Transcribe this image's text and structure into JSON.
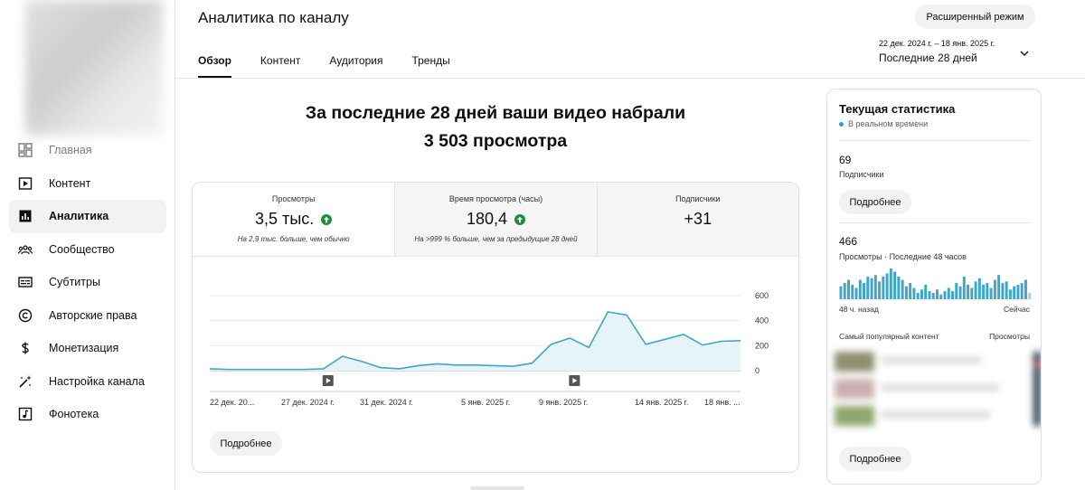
{
  "header": {
    "title": "Аналитика по каналу",
    "advanced_button": "Расширенный режим",
    "date_range": "22 дек. 2024 г. – 18 янв. 2025 г.",
    "date_label": "Последние 28 дней",
    "tabs": [
      {
        "label": "Обзор",
        "active": true
      },
      {
        "label": "Контент"
      },
      {
        "label": "Аудитория"
      },
      {
        "label": "Тренды"
      }
    ]
  },
  "sidebar": {
    "items": [
      {
        "label": "Главная",
        "icon": "dashboard-icon"
      },
      {
        "label": "Контент",
        "icon": "content-icon"
      },
      {
        "label": "Аналитика",
        "icon": "analytics-icon",
        "active": true
      },
      {
        "label": "Сообщество",
        "icon": "community-icon"
      },
      {
        "label": "Субтитры",
        "icon": "subtitles-icon"
      },
      {
        "label": "Авторские права",
        "icon": "copyright-icon"
      },
      {
        "label": "Монетизация",
        "icon": "monetization-icon"
      },
      {
        "label": "Настройка канала",
        "icon": "customization-icon"
      },
      {
        "label": "Фонотека",
        "icon": "audio-library-icon"
      }
    ]
  },
  "headline": {
    "line1": "За последние 28 дней ваши видео набрали",
    "line2": "3 503 просмотра"
  },
  "metrics": [
    {
      "title": "Просмотры",
      "value": "3,5 тыс.",
      "note": "На 2,9 тыс. больше, чем обычно",
      "trend": "up"
    },
    {
      "title": "Время просмотра (часы)",
      "value": "180,4",
      "note": "На >999 % больше, чем за предыдущие 28 дней",
      "trend": "up"
    },
    {
      "title": "Подписчики",
      "value": "+31",
      "note": "",
      "trend": ""
    }
  ],
  "chart_data": {
    "type": "area",
    "series": [
      {
        "values": [
          15,
          10,
          10,
          10,
          10,
          10,
          15,
          115,
          75,
          25,
          15,
          40,
          55,
          45,
          45,
          40,
          35,
          60,
          210,
          260,
          185,
          470,
          445,
          210,
          250,
          290,
          205,
          235,
          240
        ]
      }
    ],
    "ylim": [
      0,
      600
    ],
    "yticks": [
      "600",
      "400",
      "200",
      "0"
    ],
    "xtick_labels": [
      "22 дек. 20...",
      "27 дек. 2024 г.",
      "31 дек. 2024 г.",
      "5 янв. 2025 г.",
      "9 янв. 2025 г.",
      "14 янв. 2025 г.",
      "18 янв. ..."
    ],
    "video_markers": 2,
    "colors": {
      "line": "#3ea6c9",
      "fill": "#e6f3f9"
    },
    "grid": true
  },
  "main_more_button": "Подробнее",
  "realtime": {
    "title": "Текущая статистика",
    "live_label": "В реальном времени",
    "subscribers_value": "69",
    "subscribers_label": "Подписчики",
    "more_button": "Подробнее",
    "views_value": "466",
    "views_label": "Просмотры · Последние 48 часов",
    "bar_values": [
      8,
      10,
      12,
      9,
      7,
      12,
      10,
      14,
      13,
      15,
      11,
      14,
      16,
      19,
      17,
      14,
      12,
      8,
      10,
      7,
      4,
      6,
      9,
      5,
      4,
      6,
      3,
      5,
      7,
      5,
      10,
      8,
      14,
      9,
      7,
      11,
      13,
      9,
      10,
      7,
      12,
      15,
      10,
      11,
      6,
      8,
      9,
      10,
      12,
      4
    ],
    "axis_left": "48 ч. назад",
    "axis_right": "Сейчас",
    "popular_label": "Самый популярный контент",
    "popular_col": "Просмотры",
    "more_button2": "Подробнее",
    "bar_color": "#3ea6c9"
  }
}
